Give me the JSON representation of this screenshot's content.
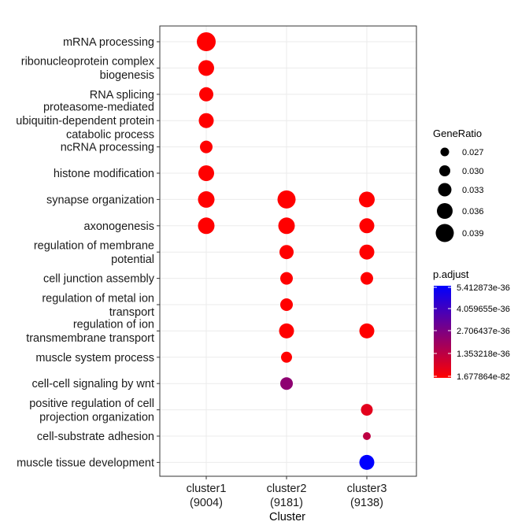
{
  "chart_data": {
    "type": "scatter",
    "xlabel": "Cluster",
    "ylabel": "",
    "x_categories": [
      "cluster1\n(9004)",
      "cluster2\n(9181)",
      "cluster3\n(9138)"
    ],
    "y_categories": [
      "mRNA processing",
      "ribonucleoprotein complex\nbiogenesis",
      "RNA splicing",
      "proteasome-mediated\nubiquitin-dependent protein\ncatabolic process",
      "ncRNA processing",
      "histone modification",
      "synapse organization",
      "axonogenesis",
      "regulation of membrane\npotential",
      "cell junction assembly",
      "regulation of metal ion\ntransport",
      "regulation of ion\ntransmembrane transport",
      "muscle system process",
      "cell-cell signaling by wnt",
      "positive regulation of cell\nprojection organization",
      "cell-substrate adhesion",
      "muscle tissue development"
    ],
    "points": [
      {
        "x": 0,
        "y": 0,
        "gene_ratio": 0.04,
        "p_adjust": 1.677864e-82
      },
      {
        "x": 0,
        "y": 1,
        "gene_ratio": 0.036,
        "p_adjust": 1.7e-82
      },
      {
        "x": 0,
        "y": 2,
        "gene_ratio": 0.034,
        "p_adjust": 1.7e-82
      },
      {
        "x": 0,
        "y": 3,
        "gene_ratio": 0.035,
        "p_adjust": 1.7e-82
      },
      {
        "x": 0,
        "y": 4,
        "gene_ratio": 0.032,
        "p_adjust": 1.7e-82
      },
      {
        "x": 0,
        "y": 5,
        "gene_ratio": 0.036,
        "p_adjust": 1.7e-82
      },
      {
        "x": 0,
        "y": 6,
        "gene_ratio": 0.037,
        "p_adjust": 1.7e-82
      },
      {
        "x": 0,
        "y": 7,
        "gene_ratio": 0.037,
        "p_adjust": 1.7e-82
      },
      {
        "x": 1,
        "y": 6,
        "gene_ratio": 0.039,
        "p_adjust": 1.7e-82
      },
      {
        "x": 1,
        "y": 7,
        "gene_ratio": 0.037,
        "p_adjust": 1.7e-82
      },
      {
        "x": 1,
        "y": 8,
        "gene_ratio": 0.034,
        "p_adjust": 1.7e-82
      },
      {
        "x": 1,
        "y": 9,
        "gene_ratio": 0.032,
        "p_adjust": 1.7e-82
      },
      {
        "x": 1,
        "y": 10,
        "gene_ratio": 0.032,
        "p_adjust": 1.7e-82
      },
      {
        "x": 1,
        "y": 11,
        "gene_ratio": 0.035,
        "p_adjust": 1.7e-82
      },
      {
        "x": 1,
        "y": 12,
        "gene_ratio": 0.03,
        "p_adjust": 1.7e-82
      },
      {
        "x": 1,
        "y": 13,
        "gene_ratio": 0.032,
        "p_adjust": 2.4e-36
      },
      {
        "x": 2,
        "y": 6,
        "gene_ratio": 0.036,
        "p_adjust": 1.7e-82
      },
      {
        "x": 2,
        "y": 7,
        "gene_ratio": 0.035,
        "p_adjust": 1.7e-82
      },
      {
        "x": 2,
        "y": 8,
        "gene_ratio": 0.035,
        "p_adjust": 1.7e-82
      },
      {
        "x": 2,
        "y": 9,
        "gene_ratio": 0.032,
        "p_adjust": 1.7e-82
      },
      {
        "x": 2,
        "y": 11,
        "gene_ratio": 0.035,
        "p_adjust": 1.7e-82
      },
      {
        "x": 2,
        "y": 14,
        "gene_ratio": 0.031,
        "p_adjust": 6e-37
      },
      {
        "x": 2,
        "y": 15,
        "gene_ratio": 0.026,
        "p_adjust": 1.4e-36
      },
      {
        "x": 2,
        "y": 16,
        "gene_ratio": 0.035,
        "p_adjust": 5.412873e-36
      }
    ],
    "size_legend": {
      "title": "GeneRatio",
      "values": [
        0.027,
        0.03,
        0.033,
        0.036,
        0.039
      ],
      "labels": [
        "0.027",
        "0.030",
        "0.033",
        "0.036",
        "0.039"
      ],
      "range": [
        0.025,
        0.04
      ]
    },
    "color_legend": {
      "title": "p.adjust",
      "labels": [
        "5.412873e-36",
        "4.059655e-36",
        "2.706437e-36",
        "1.353218e-36",
        "1.677864e-82"
      ],
      "min": 1.677864e-82,
      "max": 5.412873e-36,
      "low_color": "#ff0000",
      "high_color": "#0000ff"
    },
    "grid": true,
    "legend_position": "right"
  }
}
